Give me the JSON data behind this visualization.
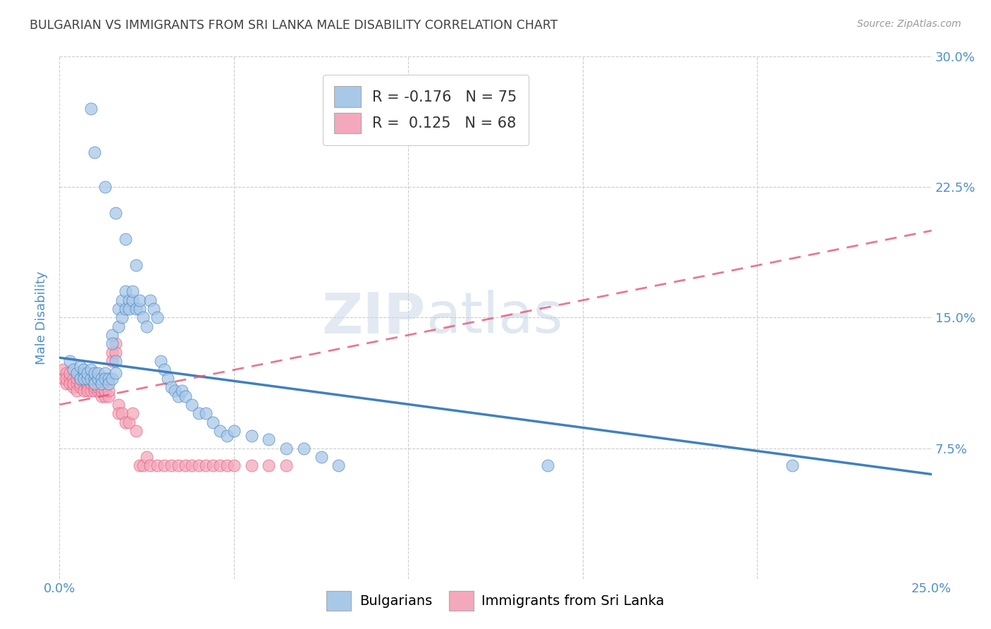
{
  "title": "BULGARIAN VS IMMIGRANTS FROM SRI LANKA MALE DISABILITY CORRELATION CHART",
  "source": "Source: ZipAtlas.com",
  "ylabel": "Male Disability",
  "watermark": "ZIPatlas",
  "xlim": [
    0.0,
    0.25
  ],
  "ylim": [
    0.0,
    0.3
  ],
  "xticks": [
    0.0,
    0.05,
    0.1,
    0.15,
    0.2,
    0.25
  ],
  "xticklabels": [
    "0.0%",
    "",
    "",
    "",
    "",
    "25.0%"
  ],
  "yticks": [
    0.0,
    0.075,
    0.15,
    0.225,
    0.3
  ],
  "yticklabels": [
    "",
    "7.5%",
    "15.0%",
    "22.5%",
    "30.0%"
  ],
  "legend_blue_r": "-0.176",
  "legend_blue_n": "75",
  "legend_pink_r": "0.125",
  "legend_pink_n": "68",
  "blue_color": "#a8c8e8",
  "pink_color": "#f4a8bc",
  "blue_line_color": "#4080c0",
  "pink_line_color": "#e05878",
  "grid_color": "#cccccc",
  "bg_color": "#ffffff",
  "title_color": "#404040",
  "axis_label_color": "#5090c8",
  "blue_scatter_x": [
    0.003,
    0.004,
    0.005,
    0.006,
    0.006,
    0.007,
    0.007,
    0.007,
    0.008,
    0.008,
    0.009,
    0.009,
    0.01,
    0.01,
    0.01,
    0.011,
    0.011,
    0.012,
    0.012,
    0.013,
    0.013,
    0.014,
    0.014,
    0.015,
    0.015,
    0.015,
    0.016,
    0.016,
    0.017,
    0.017,
    0.018,
    0.018,
    0.019,
    0.019,
    0.02,
    0.02,
    0.021,
    0.021,
    0.022,
    0.023,
    0.023,
    0.024,
    0.025,
    0.026,
    0.027,
    0.028,
    0.029,
    0.03,
    0.031,
    0.032,
    0.033,
    0.034,
    0.035,
    0.036,
    0.038,
    0.04,
    0.042,
    0.044,
    0.046,
    0.048,
    0.05,
    0.055,
    0.06,
    0.065,
    0.07,
    0.075,
    0.08,
    0.009,
    0.01,
    0.013,
    0.016,
    0.019,
    0.022,
    0.14,
    0.21
  ],
  "blue_scatter_y": [
    0.125,
    0.12,
    0.118,
    0.115,
    0.122,
    0.118,
    0.12,
    0.115,
    0.115,
    0.118,
    0.115,
    0.12,
    0.115,
    0.118,
    0.112,
    0.115,
    0.118,
    0.115,
    0.112,
    0.118,
    0.115,
    0.115,
    0.112,
    0.14,
    0.135,
    0.115,
    0.118,
    0.125,
    0.155,
    0.145,
    0.16,
    0.15,
    0.165,
    0.155,
    0.16,
    0.155,
    0.16,
    0.165,
    0.155,
    0.155,
    0.16,
    0.15,
    0.145,
    0.16,
    0.155,
    0.15,
    0.125,
    0.12,
    0.115,
    0.11,
    0.108,
    0.105,
    0.108,
    0.105,
    0.1,
    0.095,
    0.095,
    0.09,
    0.085,
    0.082,
    0.085,
    0.082,
    0.08,
    0.075,
    0.075,
    0.07,
    0.065,
    0.27,
    0.245,
    0.225,
    0.21,
    0.195,
    0.18,
    0.065,
    0.065
  ],
  "pink_scatter_x": [
    0.001,
    0.001,
    0.002,
    0.002,
    0.002,
    0.003,
    0.003,
    0.003,
    0.004,
    0.004,
    0.004,
    0.005,
    0.005,
    0.005,
    0.006,
    0.006,
    0.006,
    0.007,
    0.007,
    0.007,
    0.008,
    0.008,
    0.008,
    0.009,
    0.009,
    0.01,
    0.01,
    0.01,
    0.011,
    0.011,
    0.011,
    0.012,
    0.012,
    0.012,
    0.013,
    0.013,
    0.014,
    0.014,
    0.015,
    0.015,
    0.016,
    0.016,
    0.017,
    0.017,
    0.018,
    0.019,
    0.02,
    0.021,
    0.022,
    0.023,
    0.024,
    0.025,
    0.026,
    0.028,
    0.03,
    0.032,
    0.034,
    0.036,
    0.038,
    0.04,
    0.042,
    0.044,
    0.046,
    0.048,
    0.05,
    0.055,
    0.06,
    0.065
  ],
  "pink_scatter_y": [
    0.12,
    0.115,
    0.118,
    0.112,
    0.115,
    0.115,
    0.112,
    0.118,
    0.115,
    0.11,
    0.112,
    0.112,
    0.115,
    0.108,
    0.115,
    0.11,
    0.112,
    0.112,
    0.108,
    0.115,
    0.11,
    0.112,
    0.108,
    0.108,
    0.112,
    0.108,
    0.11,
    0.112,
    0.108,
    0.11,
    0.112,
    0.105,
    0.108,
    0.11,
    0.105,
    0.108,
    0.105,
    0.108,
    0.13,
    0.125,
    0.135,
    0.13,
    0.1,
    0.095,
    0.095,
    0.09,
    0.09,
    0.095,
    0.085,
    0.065,
    0.065,
    0.07,
    0.065,
    0.065,
    0.065,
    0.065,
    0.065,
    0.065,
    0.065,
    0.065,
    0.065,
    0.065,
    0.065,
    0.065,
    0.065,
    0.065,
    0.065,
    0.065
  ],
  "blue_regline_x": [
    0.0,
    0.25
  ],
  "blue_regline_y": [
    0.127,
    0.06
  ],
  "pink_regline_x": [
    0.0,
    0.25
  ],
  "pink_regline_y": [
    0.1,
    0.2
  ]
}
